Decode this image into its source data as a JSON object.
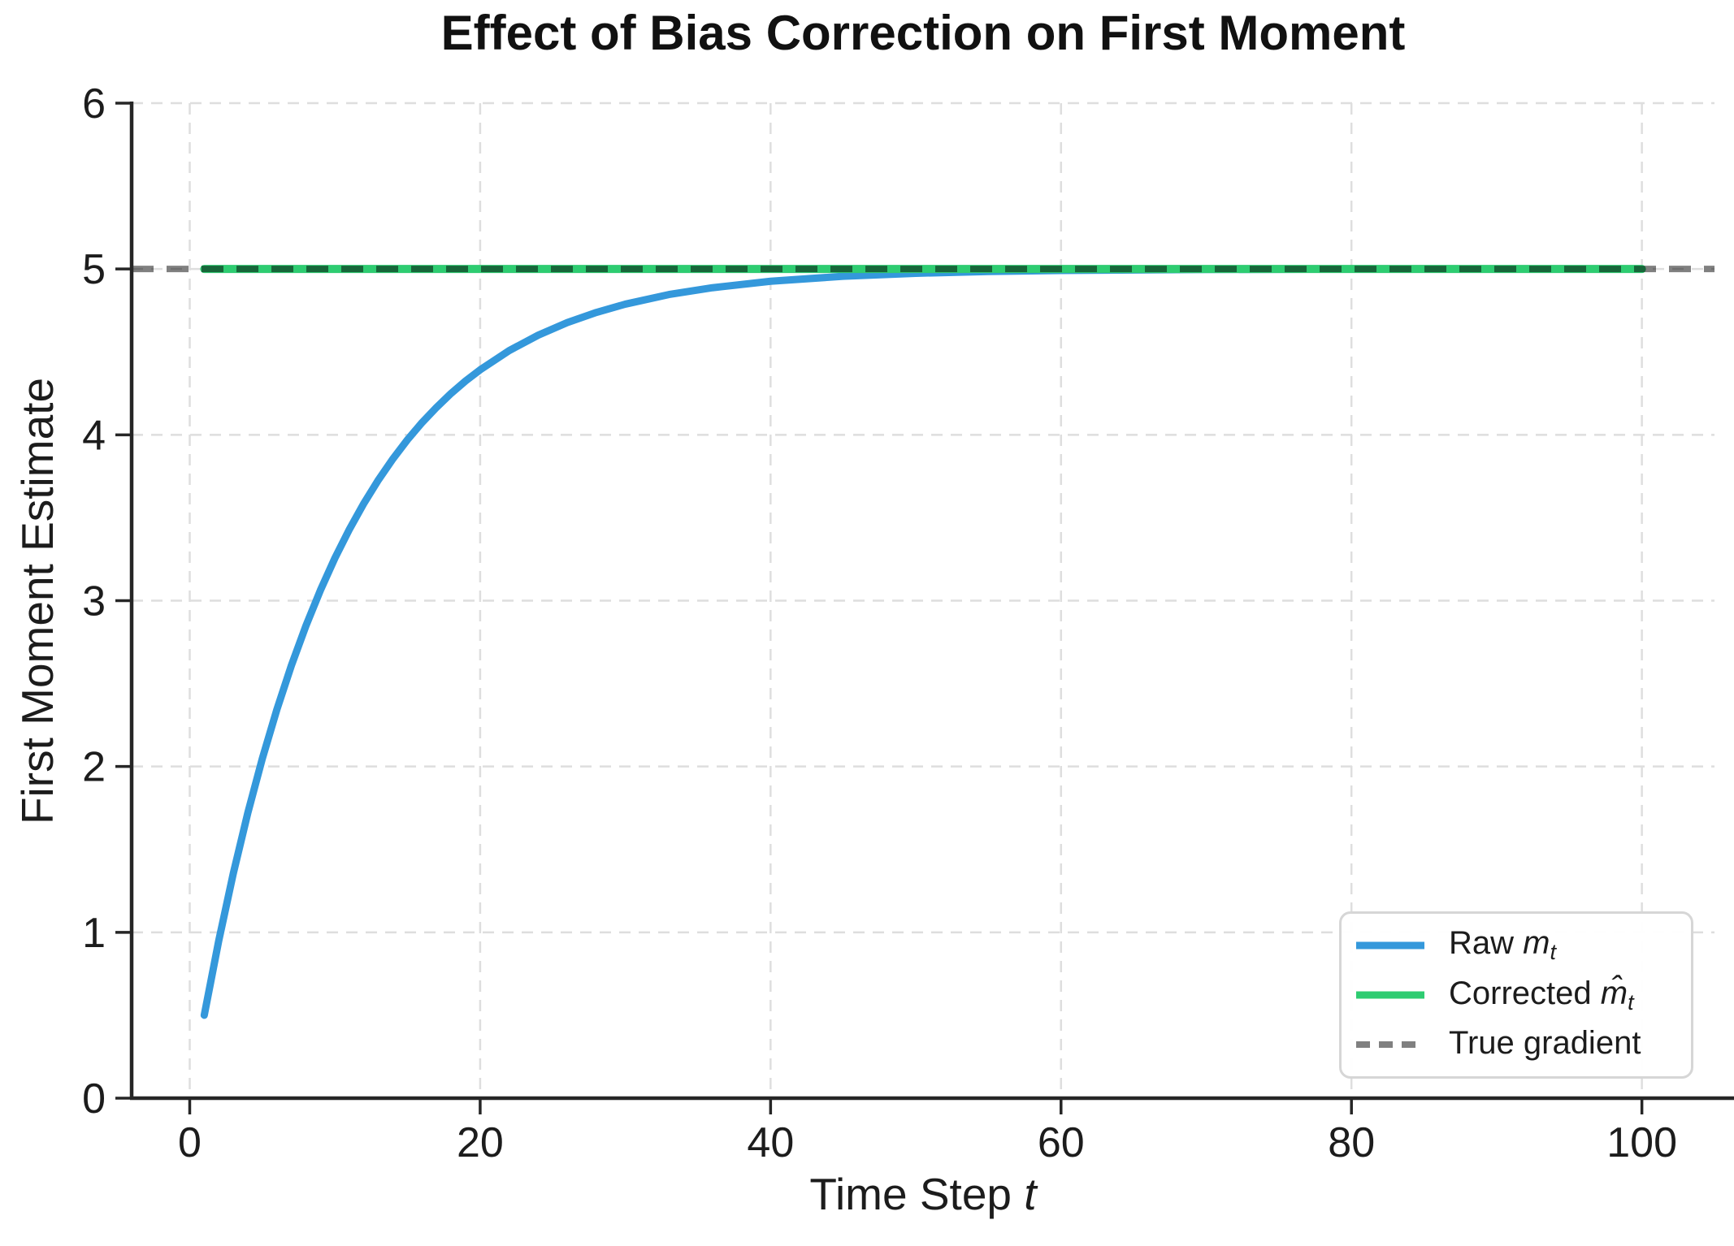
{
  "chart_data": {
    "type": "line",
    "title": "Effect of Bias Correction on First Moment",
    "xlabel": "Time Step",
    "xlabel_var": "t",
    "ylabel": "First Moment Estimate",
    "xlim": [
      -4,
      105
    ],
    "ylim": [
      0,
      6
    ],
    "xticks": [
      0,
      20,
      40,
      60,
      80,
      100
    ],
    "yticks": [
      0,
      1,
      2,
      3,
      4,
      5,
      6
    ],
    "grid": true,
    "grid_style": "dashed",
    "legend_position": "lower right",
    "series": [
      {
        "name": "Raw m_t",
        "color": "#3498db",
        "style": "solid",
        "x": [
          1,
          2,
          3,
          4,
          5,
          6,
          7,
          8,
          9,
          10,
          11,
          12,
          13,
          14,
          15,
          16,
          17,
          18,
          19,
          20,
          22,
          24,
          26,
          28,
          30,
          33,
          36,
          40,
          45,
          50,
          55,
          60,
          70,
          80,
          90,
          100
        ],
        "y": [
          0.5,
          0.95,
          1.355,
          1.72,
          2.048,
          2.343,
          2.609,
          2.848,
          3.063,
          3.257,
          3.431,
          3.588,
          3.729,
          3.856,
          3.971,
          4.074,
          4.166,
          4.25,
          4.325,
          4.392,
          4.508,
          4.601,
          4.677,
          4.738,
          4.788,
          4.846,
          4.887,
          4.926,
          4.956,
          4.974,
          4.985,
          4.991,
          4.997,
          4.999,
          5.0,
          5.0
        ]
      },
      {
        "name": "Corrected m̂_t",
        "color": "#2ecc71",
        "style": "solid",
        "x": [
          1,
          100
        ],
        "y": [
          5,
          5
        ]
      },
      {
        "name": "True gradient",
        "color": "#808080",
        "style": "dashed",
        "x": [
          -4,
          105
        ],
        "y": [
          5,
          5
        ]
      }
    ],
    "legend": {
      "items": [
        {
          "prefix": "Raw ",
          "var": "m",
          "sub": "t",
          "color": "#3498db",
          "line_style": "solid"
        },
        {
          "prefix": "Corrected ",
          "var": "m̂",
          "sub": "t",
          "color": "#2ecc71",
          "line_style": "solid"
        },
        {
          "prefix": "True gradient",
          "var": "",
          "sub": "",
          "color": "#808080",
          "line_style": "dashed"
        }
      ]
    },
    "colors": {
      "raw_line": "#3498db",
      "corrected_line": "#2ecc71",
      "true_gradient_line": "#808080",
      "grid": "#dedede",
      "spine": "#262626",
      "background": "#ffffff"
    }
  }
}
